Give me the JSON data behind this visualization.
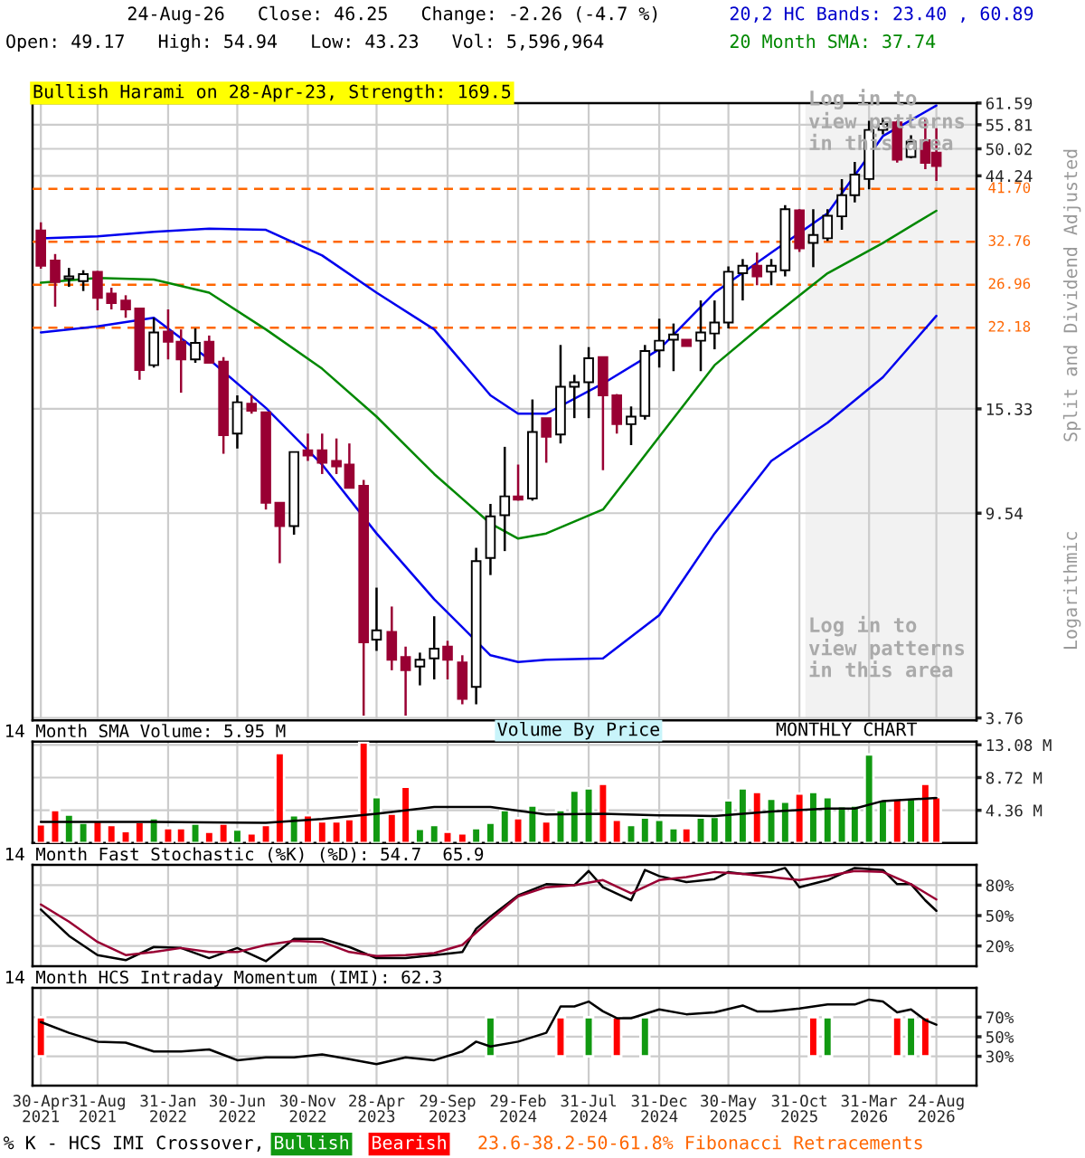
{
  "chart_data": [
    {
      "type": "candlestick",
      "title": "Bullish Harami on 28-Apr-23, Strength: 169.5",
      "x": [
        "2021-04-30",
        "2021-05-31",
        "2021-06-30",
        "2021-07-31",
        "2021-08-31",
        "2021-09-30",
        "2021-10-31",
        "2021-11-30",
        "2021-12-31",
        "2022-01-31",
        "2022-02-28",
        "2022-03-31",
        "2022-04-30",
        "2022-05-31",
        "2022-06-30",
        "2022-07-31",
        "2022-08-31",
        "2022-09-30",
        "2022-10-31",
        "2022-11-30",
        "2022-12-31",
        "2023-01-31",
        "2023-02-28",
        "2023-03-31",
        "2023-04-28",
        "2023-05-31",
        "2023-06-30",
        "2023-07-31",
        "2023-08-31",
        "2023-09-29",
        "2023-10-31",
        "2023-11-30",
        "2023-12-31",
        "2024-01-31",
        "2024-02-29",
        "2024-03-31",
        "2024-04-30",
        "2024-05-31",
        "2024-06-30",
        "2024-07-31",
        "2024-08-31",
        "2024-09-30",
        "2024-10-31",
        "2024-11-30",
        "2024-12-31",
        "2025-01-31",
        "2025-02-28",
        "2025-03-31",
        "2025-04-30",
        "2025-05-30",
        "2025-06-30",
        "2025-07-31",
        "2025-08-31",
        "2025-09-30",
        "2025-10-31",
        "2025-11-30",
        "2025-12-31",
        "2026-01-31",
        "2026-02-28",
        "2026-03-31",
        "2026-04-30",
        "2026-05-31",
        "2026-06-30",
        "2026-07-31",
        "2026-08-24"
      ],
      "ohlc": [
        [
          34.5,
          35.8,
          29.0,
          29.4
        ],
        [
          30.1,
          31.0,
          24.4,
          27.3
        ],
        [
          27.7,
          29.1,
          26.7,
          28.0
        ],
        [
          27.4,
          28.8,
          26.2,
          28.3
        ],
        [
          28.6,
          28.7,
          24.0,
          25.4
        ],
        [
          25.9,
          26.6,
          24.1,
          24.8
        ],
        [
          25.1,
          25.7,
          23.2,
          24.1
        ],
        [
          24.2,
          24.2,
          17.5,
          18.3
        ],
        [
          18.7,
          23.2,
          18.5,
          21.7
        ],
        [
          21.8,
          24.1,
          19.2,
          20.8
        ],
        [
          20.8,
          22.0,
          16.5,
          19.2
        ],
        [
          19.2,
          22.1,
          18.9,
          20.7
        ],
        [
          20.8,
          21.4,
          18.9,
          18.9
        ],
        [
          19.0,
          19.4,
          12.5,
          13.6
        ],
        [
          13.7,
          16.3,
          12.8,
          15.8
        ],
        [
          15.7,
          16.3,
          15.0,
          15.2
        ],
        [
          15.1,
          15.1,
          9.7,
          10.0
        ],
        [
          10.0,
          10.0,
          7.6,
          9.0
        ],
        [
          9.0,
          12.6,
          8.65,
          12.6
        ],
        [
          12.7,
          13.7,
          12.1,
          12.4
        ],
        [
          12.7,
          13.7,
          11.4,
          12.0
        ],
        [
          12.1,
          13.4,
          11.4,
          11.8
        ],
        [
          11.9,
          13.1,
          10.7,
          10.7
        ],
        [
          10.8,
          11.1,
          3.8,
          5.3
        ],
        [
          5.37,
          6.8,
          5.1,
          5.6
        ],
        [
          5.56,
          6.24,
          4.67,
          4.9
        ],
        [
          4.96,
          5.2,
          3.8,
          4.67
        ],
        [
          4.75,
          5.06,
          4.36,
          4.9
        ],
        [
          4.93,
          5.97,
          4.48,
          5.15
        ],
        [
          5.2,
          5.34,
          4.48,
          4.9
        ],
        [
          4.84,
          5.0,
          4.0,
          4.1
        ],
        [
          4.33,
          8.15,
          4.0,
          7.67
        ],
        [
          7.78,
          9.95,
          7.2,
          9.4
        ],
        [
          9.45,
          12.9,
          8.03,
          10.3
        ],
        [
          10.3,
          11.9,
          10.1,
          10.15
        ],
        [
          10.2,
          16.0,
          10.1,
          13.8
        ],
        [
          14.7,
          14.7,
          12.0,
          13.5
        ],
        [
          13.65,
          20.5,
          13.1,
          16.95
        ],
        [
          16.95,
          17.9,
          14.7,
          17.3
        ],
        [
          17.3,
          20.3,
          14.7,
          19.3
        ],
        [
          19.4,
          19.4,
          11.6,
          16.3
        ],
        [
          16.3,
          16.4,
          13.7,
          14.3
        ],
        [
          14.3,
          15.5,
          13.0,
          14.8
        ],
        [
          14.85,
          20.5,
          14.6,
          19.95
        ],
        [
          20.0,
          23.1,
          18.5,
          20.9
        ],
        [
          21.0,
          22.6,
          18.2,
          21.5
        ],
        [
          21.0,
          21.0,
          20.4,
          20.4
        ],
        [
          20.9,
          25.1,
          18.2,
          21.7
        ],
        [
          21.6,
          25.1,
          20.1,
          22.7
        ],
        [
          22.7,
          29.3,
          22.1,
          28.6
        ],
        [
          28.4,
          30.3,
          25.1,
          29.4
        ],
        [
          29.4,
          31.2,
          26.9,
          28.0
        ],
        [
          28.6,
          30.3,
          26.9,
          29.4
        ],
        [
          28.8,
          38.7,
          28.0,
          38.0
        ],
        [
          37.8,
          38.0,
          31.3,
          31.8
        ],
        [
          32.6,
          38.0,
          29.2,
          33.8
        ],
        [
          33.3,
          38.0,
          32.9,
          36.9
        ],
        [
          36.8,
          43.6,
          34.6,
          40.5
        ],
        [
          40.5,
          47.1,
          39.2,
          44.5
        ],
        [
          43.6,
          56.8,
          41.6,
          54.5
        ],
        [
          54.5,
          57.6,
          53.4,
          56.0
        ],
        [
          56.4,
          56.8,
          47.0,
          47.6
        ],
        [
          48.2,
          53.2,
          47.9,
          51.7
        ],
        [
          52.0,
          57.6,
          45.6,
          46.9
        ],
        [
          49.17,
          54.94,
          43.23,
          46.25
        ]
      ],
      "colors": [
        "#990033",
        "#990033",
        "#ffffff",
        "#ffffff",
        "#990033",
        "#990033",
        "#990033",
        "#990033",
        "#ffffff",
        "#990033",
        "#990033",
        "#ffffff",
        "#990033",
        "#990033",
        "#ffffff",
        "#990033",
        "#990033",
        "#990033",
        "#ffffff",
        "#990033",
        "#990033",
        "#990033",
        "#990033",
        "#990033",
        "#ffffff",
        "#990033",
        "#990033",
        "#ffffff",
        "#ffffff",
        "#990033",
        "#990033",
        "#ffffff",
        "#ffffff",
        "#ffffff",
        "#990033",
        "#ffffff",
        "#990033",
        "#ffffff",
        "#ffffff",
        "#ffffff",
        "#990033",
        "#990033",
        "#ffffff",
        "#ffffff",
        "#ffffff",
        "#ffffff",
        "#990033",
        "#ffffff",
        "#ffffff",
        "#ffffff",
        "#ffffff",
        "#990033",
        "#ffffff",
        "#ffffff",
        "#990033",
        "#ffffff",
        "#ffffff",
        "#ffffff",
        "#ffffff",
        "#ffffff",
        "#ffffff",
        "#990033",
        "#ffffff",
        "#990033",
        "#990033"
      ],
      "series": [
        {
          "type": "line",
          "color": "#0000ee",
          "x": [
            "2021-04-30",
            "2021-08-31",
            "2021-12-31",
            "2022-04-30",
            "2022-08-31",
            "2022-12-31",
            "2023-04-28",
            "2023-08-31",
            "2023-12-31",
            "2024-02-29",
            "2024-04-30",
            "2024-08-31",
            "2024-12-31",
            "2025-04-30",
            "2025-08-31",
            "2025-12-31",
            "2026-04-30",
            "2026-08-24"
          ],
          "values": [
            33.3,
            33.6,
            34.3,
            34.8,
            34.6,
            30.8,
            26.0,
            22.0,
            16.3,
            15.0,
            15.0,
            17.2,
            20.1,
            26.0,
            31.2,
            37.3,
            53.0,
            60.89
          ]
        },
        {
          "type": "line",
          "color": "#008800",
          "x": [
            "2021-04-30",
            "2021-08-31",
            "2021-12-31",
            "2022-04-30",
            "2022-08-31",
            "2022-12-31",
            "2023-04-28",
            "2023-08-31",
            "2023-12-31",
            "2024-02-29",
            "2024-04-30",
            "2024-08-31",
            "2024-12-31",
            "2025-04-30",
            "2025-08-31",
            "2025-12-31",
            "2026-04-30",
            "2026-08-24"
          ],
          "values": [
            27.2,
            27.8,
            27.6,
            26.0,
            22.0,
            18.4,
            14.8,
            11.4,
            9.1,
            8.5,
            8.7,
            9.7,
            13.5,
            18.7,
            23.2,
            28.4,
            32.6,
            37.74
          ]
        },
        {
          "type": "line",
          "color": "#0000ee",
          "x": [
            "2021-04-30",
            "2021-08-31",
            "2021-12-31",
            "2022-04-30",
            "2022-08-31",
            "2022-12-31",
            "2023-04-28",
            "2023-08-31",
            "2023-12-31",
            "2024-02-29",
            "2024-04-30",
            "2024-08-31",
            "2024-12-31",
            "2025-04-30",
            "2025-08-31",
            "2025-12-31",
            "2026-04-30",
            "2026-08-24"
          ],
          "values": [
            21.7,
            22.3,
            23.2,
            19.2,
            15.4,
            11.9,
            8.7,
            6.45,
            5.0,
            4.85,
            4.9,
            4.93,
            6.0,
            8.7,
            12.1,
            14.4,
            17.7,
            23.4
          ]
        }
      ],
      "ref_lines": [
        {
          "axis": "y",
          "value": 41.7,
          "label": "41.70",
          "color": "#ff6600",
          "line_style": "dashed"
        },
        {
          "axis": "y",
          "value": 32.76,
          "label": "32.76",
          "color": "#ff6600",
          "line_style": "dashed"
        },
        {
          "axis": "y",
          "value": 26.96,
          "label": "26.96",
          "color": "#ff6600",
          "line_style": "dashed"
        },
        {
          "axis": "y",
          "value": 22.18,
          "label": "22.18",
          "color": "#ff6600",
          "line_style": "dashed"
        }
      ],
      "bands": [
        {
          "axis": "x",
          "from": "2025-11-13",
          "to": "2026-11-19",
          "color": "#f2f2f2"
        }
      ],
      "annotations": [
        "24-Aug-26   Close: 46.25   Change: -2.26 (-4.7 %)",
        "Open: 49.17   High: 54.94   Low: 43.23   Vol: 5,596,964",
        "20,2 HC Bands: 23.40 , 60.89",
        "20 Month SMA: 37.74",
        "Split and Dividend Adjusted",
        "Logarithmic",
        "Log in to\nview patterns\nin this area",
        "Log in to\nview patterns\nin this area",
        "MONTHLY CHART"
      ],
      "log": "y",
      "xlim": [
        "2021-04-12",
        "2026-11-19"
      ],
      "ylim": [
        3.72,
        61.59
      ],
      "yticks": [
        3.76,
        9.54,
        15.33,
        44.24,
        50.02,
        55.81,
        61.59
      ],
      "grid": true,
      "tick_labels": "y"
    },
    {
      "type": "bar",
      "title": "14 Month SMA Volume: 5.95 M",
      "x": [
        "2021-04-30",
        "2021-05-31",
        "2021-06-30",
        "2021-07-31",
        "2021-08-31",
        "2021-09-30",
        "2021-10-31",
        "2021-11-30",
        "2021-12-31",
        "2022-01-31",
        "2022-02-28",
        "2022-03-31",
        "2022-04-30",
        "2022-05-31",
        "2022-06-30",
        "2022-07-31",
        "2022-08-31",
        "2022-09-30",
        "2022-10-31",
        "2022-11-30",
        "2022-12-31",
        "2023-01-31",
        "2023-02-28",
        "2023-03-31",
        "2023-04-28",
        "2023-05-31",
        "2023-06-30",
        "2023-07-31",
        "2023-08-31",
        "2023-09-29",
        "2023-10-31",
        "2023-11-30",
        "2023-12-31",
        "2024-01-31",
        "2024-02-29",
        "2024-03-31",
        "2024-04-30",
        "2024-05-31",
        "2024-06-30",
        "2024-07-31",
        "2024-08-31",
        "2024-09-30",
        "2024-10-31",
        "2024-11-30",
        "2024-12-31",
        "2025-01-31",
        "2025-02-28",
        "2025-03-31",
        "2025-04-30",
        "2025-05-30",
        "2025-06-30",
        "2025-07-31",
        "2025-08-31",
        "2025-09-30",
        "2025-10-31",
        "2025-11-30",
        "2025-12-31",
        "2026-01-31",
        "2026-02-28",
        "2026-03-31",
        "2026-04-30",
        "2026-05-31",
        "2026-06-30",
        "2026-07-31",
        "2026-08-24"
      ],
      "values": [
        2.5,
        4.4,
        3.8,
        2.7,
        3.0,
        2.4,
        1.6,
        2.8,
        3.3,
        2.0,
        2.0,
        2.6,
        1.5,
        2.6,
        1.8,
        1.3,
        2.4,
        12.0,
        3.7,
        3.7,
        2.9,
        2.9,
        3.2,
        13.4,
        6.1,
        3.9,
        7.5,
        1.9,
        2.4,
        1.5,
        1.3,
        2.0,
        2.7,
        4.4,
        3.3,
        5.0,
        2.9,
        4.4,
        7.0,
        7.3,
        7.9,
        3.1,
        2.4,
        3.4,
        3.1,
        2.0,
        2.0,
        3.4,
        3.5,
        5.7,
        7.3,
        6.8,
        5.9,
        5.5,
        6.6,
        6.8,
        6.1,
        4.9,
        5.0,
        11.8,
        5.7,
        5.9,
        5.9,
        7.9,
        6.1
      ],
      "colors": [
        "#ff0000",
        "#ff0000",
        "#119911",
        "#119911",
        "#ff0000",
        "#ff0000",
        "#ff0000",
        "#ff0000",
        "#119911",
        "#ff0000",
        "#ff0000",
        "#119911",
        "#ff0000",
        "#ff0000",
        "#119911",
        "#ff0000",
        "#ff0000",
        "#ff0000",
        "#119911",
        "#ff0000",
        "#ff0000",
        "#ff0000",
        "#ff0000",
        "#ff0000",
        "#119911",
        "#ff0000",
        "#ff0000",
        "#119911",
        "#119911",
        "#ff0000",
        "#ff0000",
        "#119911",
        "#119911",
        "#119911",
        "#ff0000",
        "#119911",
        "#ff0000",
        "#119911",
        "#119911",
        "#119911",
        "#ff0000",
        "#ff0000",
        "#119911",
        "#119911",
        "#119911",
        "#119911",
        "#ff0000",
        "#119911",
        "#119911",
        "#119911",
        "#119911",
        "#ff0000",
        "#119911",
        "#119911",
        "#ff0000",
        "#119911",
        "#119911",
        "#119911",
        "#119911",
        "#119911",
        "#119911",
        "#ff0000",
        "#119911",
        "#ff0000",
        "#ff0000"
      ],
      "series": [
        {
          "type": "line",
          "color": "#000000",
          "x": [
            "2021-04-30",
            "2021-12-31",
            "2022-08-31",
            "2022-12-31",
            "2023-04-28",
            "2023-08-31",
            "2023-12-31",
            "2024-04-30",
            "2024-08-31",
            "2024-12-31",
            "2025-04-30",
            "2025-08-31",
            "2025-12-31",
            "2026-02-28",
            "2026-04-30",
            "2026-08-24"
          ],
          "values": [
            2.8,
            2.8,
            2.7,
            3.2,
            3.9,
            4.8,
            4.8,
            3.8,
            3.9,
            3.7,
            3.6,
            4.2,
            4.6,
            4.6,
            5.6,
            6.0
          ]
        }
      ],
      "annotations": [
        "Volume By Price"
      ],
      "xlim": [
        "2021-04-12",
        "2026-11-19"
      ],
      "ylim": [
        0,
        13.5
      ],
      "yticks": [
        {
          "value": 4.36,
          "label": "4.36 M"
        },
        {
          "value": 8.72,
          "label": "8.72 M"
        },
        {
          "value": 13.08,
          "label": "13.08 M"
        }
      ],
      "grid": true,
      "tick_labels": "y"
    },
    {
      "type": "line",
      "title": "14 Month Fast Stochastic (%K) (%D): 54.7  65.9",
      "series": [
        {
          "color": "#000000",
          "x": [
            "2021-04-30",
            "2021-06-30",
            "2021-08-31",
            "2021-10-31",
            "2021-12-31",
            "2022-02-28",
            "2022-04-30",
            "2022-06-30",
            "2022-08-31",
            "2022-10-31",
            "2022-12-31",
            "2023-02-28",
            "2023-04-28",
            "2023-06-30",
            "2023-08-31",
            "2023-10-31",
            "2023-11-30",
            "2023-12-31",
            "2024-02-29",
            "2024-04-30",
            "2024-06-30",
            "2024-07-31",
            "2024-08-31",
            "2024-10-31",
            "2024-11-30",
            "2024-12-31",
            "2025-02-28",
            "2025-04-30",
            "2025-05-30",
            "2025-06-30",
            "2025-08-31",
            "2025-09-30",
            "2025-10-31",
            "2025-12-31",
            "2026-02-28",
            "2026-04-30",
            "2026-05-31",
            "2026-06-30",
            "2026-07-31",
            "2026-08-24"
          ],
          "values": [
            56,
            30,
            11,
            6,
            19,
            18,
            8,
            18,
            5,
            27,
            27,
            19,
            8,
            8,
            11,
            14,
            37,
            49,
            70,
            81,
            80,
            94,
            78,
            65,
            95,
            89,
            83,
            86,
            93,
            91,
            93,
            97,
            78,
            85,
            97,
            95,
            81,
            81,
            65,
            54.7
          ]
        },
        {
          "color": "#990033",
          "x": [
            "2021-04-30",
            "2021-06-30",
            "2021-08-31",
            "2021-10-31",
            "2021-12-31",
            "2022-02-28",
            "2022-04-30",
            "2022-06-30",
            "2022-08-31",
            "2022-10-31",
            "2022-12-31",
            "2023-02-28",
            "2023-04-28",
            "2023-06-30",
            "2023-08-31",
            "2023-10-31",
            "2023-12-31",
            "2024-02-29",
            "2024-04-30",
            "2024-06-30",
            "2024-08-31",
            "2024-10-31",
            "2024-12-31",
            "2025-02-28",
            "2025-04-30",
            "2025-06-30",
            "2025-08-31",
            "2025-10-31",
            "2025-12-31",
            "2026-02-28",
            "2026-04-30",
            "2026-06-30",
            "2026-08-24"
          ],
          "values": [
            61,
            44,
            24,
            11,
            14,
            18,
            14,
            14,
            21,
            25,
            24,
            14,
            10,
            11,
            13,
            21,
            46,
            69,
            78,
            80,
            85,
            72,
            85,
            88,
            93,
            91,
            88,
            85,
            89,
            94,
            93,
            81,
            65.9
          ]
        }
      ],
      "xlim": [
        "2021-04-12",
        "2026-11-19"
      ],
      "ylim": [
        0,
        100
      ],
      "yticks": [
        {
          "value": 20,
          "label": "20%"
        },
        {
          "value": 50,
          "label": "50%"
        },
        {
          "value": 80,
          "label": "80%"
        }
      ],
      "grid": true,
      "tick_labels": "y"
    },
    {
      "type": "line",
      "title": "14 Month HCS Intraday Momentum (IMI): 62.3",
      "series": [
        {
          "type": "line",
          "color": "#000000",
          "x": [
            "2021-04-30",
            "2021-06-30",
            "2021-08-31",
            "2021-10-31",
            "2021-12-31",
            "2022-02-28",
            "2022-04-30",
            "2022-06-30",
            "2022-08-31",
            "2022-10-31",
            "2022-12-31",
            "2023-02-28",
            "2023-04-28",
            "2023-06-30",
            "2023-08-31",
            "2023-10-31",
            "2023-11-30",
            "2023-12-31",
            "2024-02-29",
            "2024-04-30",
            "2024-05-31",
            "2024-06-30",
            "2024-07-31",
            "2024-08-31",
            "2024-09-30",
            "2024-10-31",
            "2024-12-31",
            "2025-02-28",
            "2025-04-30",
            "2025-06-30",
            "2025-07-31",
            "2025-08-31",
            "2025-10-31",
            "2025-12-31",
            "2026-02-28",
            "2026-03-31",
            "2026-04-30",
            "2026-05-31",
            "2026-06-30",
            "2026-07-31",
            "2026-08-24"
          ],
          "values": [
            65,
            54,
            45,
            44,
            35,
            35,
            37,
            26,
            29,
            29,
            32,
            27,
            22,
            29,
            26,
            35,
            45,
            40,
            45,
            54,
            81,
            81,
            86,
            76,
            69,
            69,
            78,
            73,
            75,
            82,
            76,
            76,
            79,
            83,
            83,
            88,
            86,
            75,
            78,
            67,
            62.3
          ]
        },
        {
          "type": "bar",
          "name": "Bullish",
          "color": "#119911",
          "x": [
            "2023-12-31",
            "2024-07-31",
            "2024-11-30",
            "2025-12-31",
            "2026-06-30"
          ],
          "base": [
            30,
            30,
            30,
            30,
            30
          ],
          "values": [
            40,
            40,
            40,
            40,
            40
          ]
        },
        {
          "type": "bar",
          "name": "Bearish",
          "color": "#ff0000",
          "x": [
            "2021-04-30",
            "2024-05-31",
            "2024-09-30",
            "2025-11-30",
            "2026-05-31",
            "2026-07-31"
          ],
          "base": [
            30,
            30,
            30,
            30,
            30,
            30
          ],
          "values": [
            40,
            40,
            40,
            40,
            40,
            40
          ]
        }
      ],
      "annotations": [
        "% K - HCS IMI Crossover,",
        "23.6-38.2-50-61.8% Fibonacci Retracements"
      ],
      "legend": "bottom",
      "xlim": [
        "2021-04-12",
        "2026-11-19"
      ],
      "ylim": [
        0,
        100
      ],
      "xticks": [
        {
          "value": "2021-04-30",
          "label": "30-Apr\n2021"
        },
        {
          "value": "2021-08-31",
          "label": "31-Aug\n2021"
        },
        {
          "value": "2022-01-31",
          "label": "31-Jan\n2022"
        },
        {
          "value": "2022-06-30",
          "label": "30-Jun\n2022"
        },
        {
          "value": "2022-11-30",
          "label": "30-Nov\n2022"
        },
        {
          "value": "2023-04-28",
          "label": "28-Apr\n2023"
        },
        {
          "value": "2023-09-29",
          "label": "29-Sep\n2023"
        },
        {
          "value": "2024-02-29",
          "label": "29-Feb\n2024"
        },
        {
          "value": "2024-07-31",
          "label": "31-Jul\n2024"
        },
        {
          "value": "2024-12-31",
          "label": "31-Dec\n2024"
        },
        {
          "value": "2025-05-30",
          "label": "30-May\n2025"
        },
        {
          "value": "2025-10-31",
          "label": "31-Oct\n2025"
        },
        {
          "value": "2026-03-31",
          "label": "31-Mar\n2026"
        },
        {
          "value": "2026-08-24",
          "label": "24-Aug\n2026"
        }
      ],
      "yticks": [
        {
          "value": 30,
          "label": "30%"
        },
        {
          "value": 50,
          "label": "50%"
        },
        {
          "value": 70,
          "label": "70%"
        }
      ],
      "grid": true
    }
  ]
}
